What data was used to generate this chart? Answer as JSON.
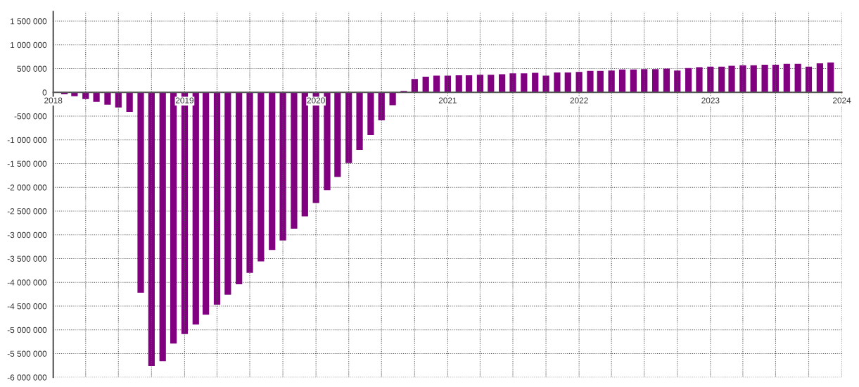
{
  "chart_data": {
    "type": "bar",
    "x": [
      "2018-02",
      "2018-03",
      "2018-04",
      "2018-05",
      "2018-06",
      "2018-07",
      "2018-08",
      "2018-09",
      "2018-10",
      "2018-11",
      "2018-12",
      "2019-01",
      "2019-02",
      "2019-03",
      "2019-04",
      "2019-05",
      "2019-06",
      "2019-07",
      "2019-08",
      "2019-09",
      "2019-10",
      "2019-11",
      "2019-12",
      "2020-01",
      "2020-02",
      "2020-03",
      "2020-04",
      "2020-05",
      "2020-06",
      "2020-07",
      "2020-08",
      "2020-09",
      "2020-10",
      "2020-11",
      "2020-12",
      "2021-01",
      "2021-02",
      "2021-03",
      "2021-04",
      "2021-05",
      "2021-06",
      "2021-07",
      "2021-08",
      "2021-09",
      "2021-10",
      "2021-11",
      "2021-12",
      "2022-01",
      "2022-02",
      "2022-03",
      "2022-04",
      "2022-05",
      "2022-06",
      "2022-07",
      "2022-08",
      "2022-09",
      "2022-10",
      "2022-11",
      "2022-12",
      "2023-01",
      "2023-02",
      "2023-03",
      "2023-04",
      "2023-05",
      "2023-06",
      "2023-07",
      "2023-08",
      "2023-09",
      "2023-10",
      "2023-11",
      "2023-12"
    ],
    "values": [
      -40000,
      -80000,
      -140000,
      -200000,
      -260000,
      -320000,
      -410000,
      -4220000,
      -5760000,
      -5660000,
      -5290000,
      -5090000,
      -4890000,
      -4680000,
      -4470000,
      -4260000,
      -4040000,
      -3800000,
      -3560000,
      -3320000,
      -3120000,
      -2870000,
      -2610000,
      -2330000,
      -2060000,
      -1780000,
      -1490000,
      -1210000,
      -900000,
      -590000,
      -270000,
      30000,
      280000,
      330000,
      350000,
      350000,
      360000,
      360000,
      370000,
      370000,
      380000,
      400000,
      400000,
      410000,
      350000,
      420000,
      420000,
      430000,
      450000,
      450000,
      460000,
      480000,
      480000,
      490000,
      490000,
      500000,
      460000,
      510000,
      530000,
      540000,
      540000,
      560000,
      570000,
      570000,
      580000,
      580000,
      600000,
      600000,
      540000,
      610000,
      630000
    ],
    "color": "#800080",
    "xlim": [
      "2018-01",
      "2024-01"
    ],
    "xticks": [
      {
        "value": "2018-01",
        "label": "2018"
      },
      {
        "value": "2018-04",
        "label": null
      },
      {
        "value": "2018-07",
        "label": null
      },
      {
        "value": "2018-10",
        "label": null
      },
      {
        "value": "2019-01",
        "label": "2019"
      },
      {
        "value": "2019-04",
        "label": null
      },
      {
        "value": "2019-07",
        "label": null
      },
      {
        "value": "2019-10",
        "label": null
      },
      {
        "value": "2020-01",
        "label": "2020"
      },
      {
        "value": "2020-04",
        "label": null
      },
      {
        "value": "2020-07",
        "label": null
      },
      {
        "value": "2020-10",
        "label": null
      },
      {
        "value": "2021-01",
        "label": "2021"
      },
      {
        "value": "2021-04",
        "label": null
      },
      {
        "value": "2021-07",
        "label": null
      },
      {
        "value": "2021-10",
        "label": null
      },
      {
        "value": "2022-01",
        "label": "2022"
      },
      {
        "value": "2022-04",
        "label": null
      },
      {
        "value": "2022-07",
        "label": null
      },
      {
        "value": "2022-10",
        "label": null
      },
      {
        "value": "2023-01",
        "label": "2023"
      },
      {
        "value": "2023-04",
        "label": null
      },
      {
        "value": "2023-07",
        "label": null
      },
      {
        "value": "2023-10",
        "label": null
      },
      {
        "value": "2024-01",
        "label": "2024"
      }
    ],
    "ylim": [
      -6000000,
      1700000
    ],
    "yticks": [
      {
        "value": -6000000,
        "label": "-6 000 000"
      },
      {
        "value": -5500000,
        "label": "-5 500 000"
      },
      {
        "value": -5000000,
        "label": "-5 000 000"
      },
      {
        "value": -4500000,
        "label": "-4 500 000"
      },
      {
        "value": -4000000,
        "label": "-4 000 000"
      },
      {
        "value": -3500000,
        "label": "-3 500 000"
      },
      {
        "value": -3000000,
        "label": "-3 000 000"
      },
      {
        "value": -2500000,
        "label": "-2 500 000"
      },
      {
        "value": -2000000,
        "label": "-2 000 000"
      },
      {
        "value": -1500000,
        "label": "-1 500 000"
      },
      {
        "value": -1000000,
        "label": "-1 000 000"
      },
      {
        "value": -500000,
        "label": "-500 000"
      },
      0,
      {
        "value": 500000,
        "label": "500 000"
      },
      {
        "value": 1000000,
        "label": "1 000 000"
      },
      {
        "value": 1500000,
        "label": "1 500 000"
      }
    ],
    "grid": true,
    "legend": false
  }
}
